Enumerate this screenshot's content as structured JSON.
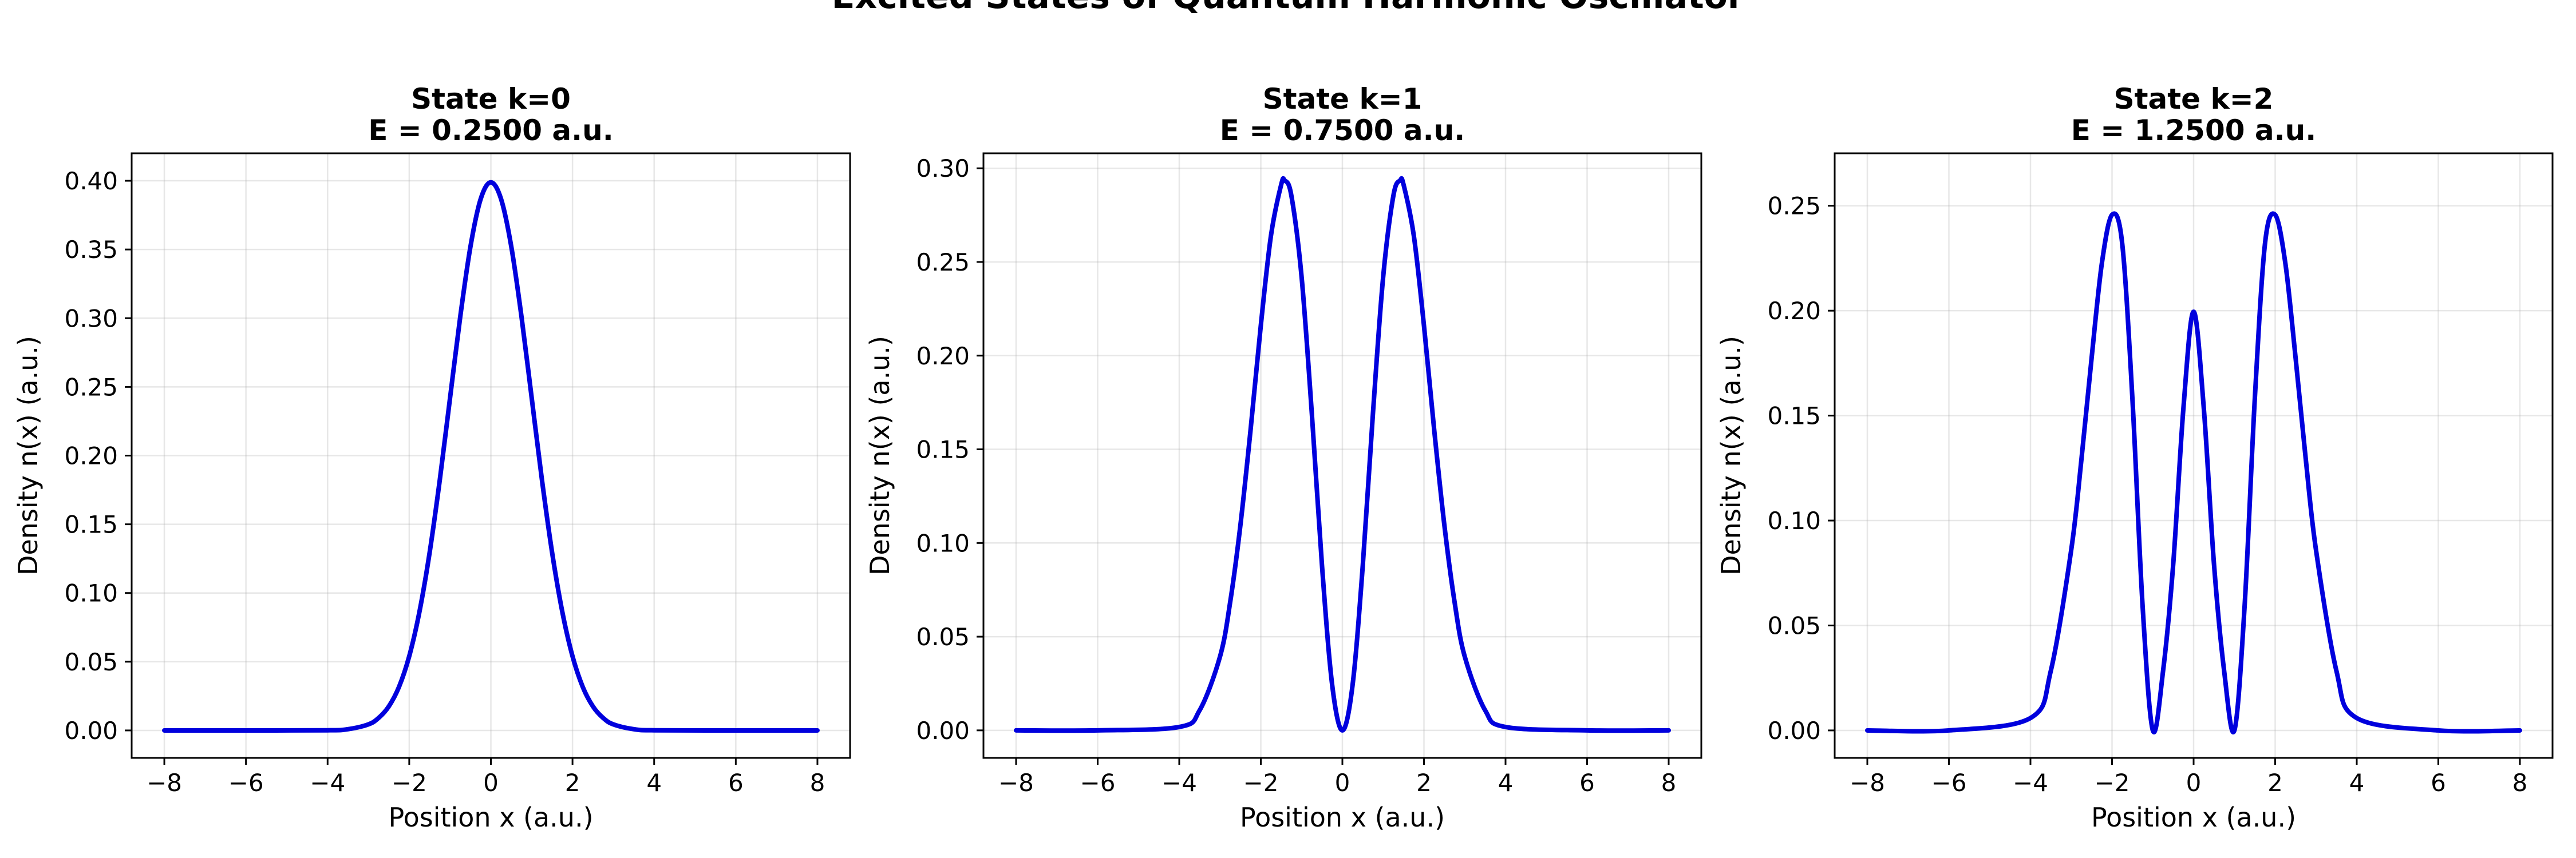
{
  "figure": {
    "title": "Excited States of Quantum Harmonic Oscillator"
  },
  "colors": {
    "line": "#0000dd",
    "grid": "#b0b0b0",
    "axes": "#000000"
  },
  "chart_data": [
    {
      "type": "line",
      "title": "State k=0\nE = 0.2500 a.u.",
      "title_lines": [
        "State k=0",
        "E = 0.2500 a.u."
      ],
      "xlabel": "Position x (a.u.)",
      "ylabel": "Density n(x) (a.u.)",
      "xlim": [
        -8.8,
        8.8
      ],
      "ylim": [
        -0.02,
        0.42
      ],
      "xticks": [
        -8,
        -6,
        -4,
        -2,
        0,
        2,
        4,
        6,
        8
      ],
      "yticks": [
        0.0,
        0.05,
        0.1,
        0.15,
        0.2,
        0.25,
        0.3,
        0.35,
        0.4
      ],
      "ytick_labels": [
        "0.00",
        "0.05",
        "0.10",
        "0.15",
        "0.20",
        "0.25",
        "0.30",
        "0.35",
        "0.40"
      ],
      "grid": true,
      "series": [
        {
          "x": [
            -8,
            -6,
            -4,
            -3.5,
            -3,
            -2.75,
            -2.5,
            -2.25,
            -2,
            -1.75,
            -1.5,
            -1.25,
            -1,
            -0.75,
            -0.5,
            -0.25,
            0,
            0.25,
            0.5,
            0.75,
            1,
            1.25,
            1.5,
            1.75,
            2,
            2.25,
            2.5,
            2.75,
            3,
            3.5,
            4,
            6,
            8
          ],
          "y": [
            0,
            0,
            0.0001,
            0.0009,
            0.0044,
            0.0091,
            0.0175,
            0.0317,
            0.054,
            0.0863,
            0.1295,
            0.1826,
            0.242,
            0.3011,
            0.3521,
            0.3867,
            0.3989,
            0.3867,
            0.3521,
            0.3011,
            0.242,
            0.1826,
            0.1295,
            0.0863,
            0.054,
            0.0317,
            0.0175,
            0.0091,
            0.0044,
            0.0009,
            0.0001,
            0,
            0
          ]
        }
      ]
    },
    {
      "type": "line",
      "title": "State k=1\nE = 0.7500 a.u.",
      "title_lines": [
        "State k=1",
        "E = 0.7500 a.u."
      ],
      "xlabel": "Position x (a.u.)",
      "ylabel": "Density n(x) (a.u.)",
      "xlim": [
        -8.8,
        8.8
      ],
      "ylim": [
        -0.0147,
        0.308
      ],
      "xticks": [
        -8,
        -6,
        -4,
        -2,
        0,
        2,
        4,
        6,
        8
      ],
      "yticks": [
        0.0,
        0.05,
        0.1,
        0.15,
        0.2,
        0.25,
        0.3
      ],
      "ytick_labels": [
        "0.00",
        "0.05",
        "0.10",
        "0.15",
        "0.20",
        "0.25",
        "0.30"
      ],
      "grid": true,
      "series": [
        {
          "x": [
            -8,
            -6,
            -4,
            -3.5,
            -3,
            -2.75,
            -2.5,
            -2.25,
            -2,
            -1.75,
            -1.5,
            -1.414,
            -1.25,
            -1,
            -0.75,
            -0.5,
            -0.25,
            0,
            0.25,
            0.5,
            0.75,
            1,
            1.25,
            1.414,
            1.5,
            1.75,
            2,
            2.25,
            2.5,
            2.75,
            3,
            3.5,
            4,
            6,
            8
          ],
          "y": [
            0,
            0,
            0.0018,
            0.0107,
            0.0394,
            0.0686,
            0.1096,
            0.1606,
            0.2161,
            0.2642,
            0.2913,
            0.2935,
            0.2853,
            0.242,
            0.1694,
            0.088,
            0.0242,
            0,
            0.0242,
            0.088,
            0.1694,
            0.242,
            0.2853,
            0.2935,
            0.2913,
            0.2642,
            0.2161,
            0.1606,
            0.1096,
            0.0686,
            0.0394,
            0.0107,
            0.0018,
            0,
            0
          ]
        }
      ]
    },
    {
      "type": "line",
      "title": "State k=2\nE = 1.2500 a.u.",
      "title_lines": [
        "State k=2",
        "E = 1.2500 a.u."
      ],
      "xlabel": "Position x (a.u.)",
      "ylabel": "Density n(x) (a.u.)",
      "xlim": [
        -8.8,
        8.8
      ],
      "ylim": [
        -0.0131,
        0.275
      ],
      "xticks": [
        -8,
        -6,
        -4,
        -2,
        0,
        2,
        4,
        6,
        8
      ],
      "yticks": [
        0.0,
        0.05,
        0.1,
        0.15,
        0.2,
        0.25
      ],
      "ytick_labels": [
        "0.00",
        "0.05",
        "0.10",
        "0.15",
        "0.20",
        "0.25"
      ],
      "grid": true,
      "series": [
        {
          "x": [
            -8,
            -6,
            -4,
            -3.5,
            -3,
            -2.75,
            -2.5,
            -2.25,
            -2,
            -1.75,
            -1.5,
            -1.25,
            -1,
            -0.75,
            -0.5,
            -0.25,
            0,
            0.25,
            0.5,
            0.75,
            1,
            1.25,
            1.5,
            1.75,
            2,
            2.25,
            2.5,
            2.75,
            3,
            3.5,
            4,
            6,
            8
          ],
          "y": [
            0,
            0,
            0.0059,
            0.0285,
            0.0861,
            0.1292,
            0.1776,
            0.2225,
            0.2457,
            0.2319,
            0.1579,
            0.0591,
            0,
            0.0281,
            0.0792,
            0.1535,
            0.1995,
            0.1535,
            0.0792,
            0.0281,
            0,
            0.0591,
            0.1579,
            0.2319,
            0.2457,
            0.2225,
            0.1776,
            0.1292,
            0.0861,
            0.0285,
            0.0059,
            0,
            0
          ]
        }
      ]
    }
  ]
}
